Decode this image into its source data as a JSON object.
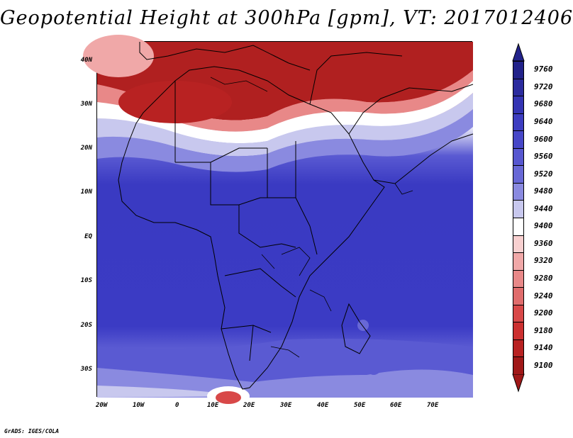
{
  "title": "Geopotential Height at 300hPa [gpm], VT: 2017012406",
  "footer": "GrADS: IGES/COLA",
  "map": {
    "lat_labels": [
      "40N",
      "30N",
      "20N",
      "10N",
      "EQ",
      "10S",
      "20S",
      "30S"
    ],
    "lon_labels": [
      "20W",
      "10W",
      "0",
      "10E",
      "20E",
      "30E",
      "40E",
      "50E",
      "60E",
      "70E"
    ]
  },
  "colorbar": {
    "labels": [
      "9760",
      "9720",
      "9680",
      "9640",
      "9600",
      "9560",
      "9520",
      "9480",
      "9440",
      "9400",
      "9360",
      "9320",
      "9280",
      "9240",
      "9200",
      "9180",
      "9140",
      "9100"
    ],
    "colors": [
      "#22228a",
      "#2b2b9e",
      "#3434b3",
      "#3d3dc0",
      "#4747c8",
      "#5757d0",
      "#6868d6",
      "#8a8ae0",
      "#c8c8ee",
      "#ffffff",
      "#f8d0d0",
      "#f0a8a8",
      "#e88888",
      "#e06c6c",
      "#d84848",
      "#cc3030",
      "#b82222",
      "#a01818"
    ]
  }
}
